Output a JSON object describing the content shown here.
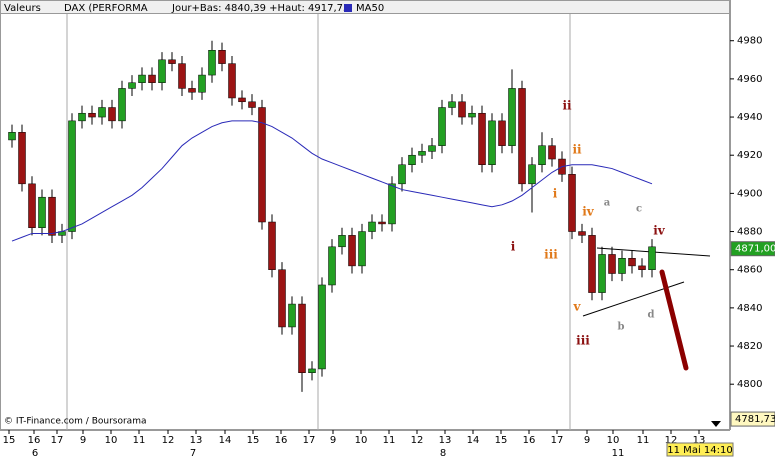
{
  "chart_data": {
    "type": "candlestick",
    "header": {
      "section": "Valeurs",
      "instrument": "DAX (PERFORMA",
      "range": "Jour+Bas: 4840,39 +Haut: 4917,73"
    },
    "source": "© IT-Finance.com / Boursorama",
    "date_label": "11 Mai 14:10",
    "hour_labels": [
      "15",
      "16",
      "17",
      "9",
      "10",
      "11",
      "12",
      "13",
      "14",
      "15",
      "16",
      "17",
      "9",
      "10",
      "11",
      "12",
      "13",
      "14",
      "15",
      "16",
      "17",
      "9",
      "10",
      "11",
      "12",
      "13",
      "14",
      "15",
      "16",
      "17",
      "9",
      "10",
      "11",
      "12",
      "13"
    ],
    "day_labels": [
      "6",
      "7",
      "8",
      "11"
    ],
    "ylim": [
      4776,
      4994
    ],
    "yticks": [
      4800,
      4820,
      4840,
      4860,
      4880,
      4900,
      4920,
      4940,
      4960,
      4980
    ],
    "up_color": "#22a022",
    "down_color": "#9c1414",
    "open": [
      4928,
      4932,
      4905,
      4882,
      4898,
      4878,
      4880,
      4938,
      4942,
      4940,
      4945,
      4938,
      4955,
      4958,
      4962,
      4958,
      4970,
      4968,
      4955,
      4953,
      4962,
      4975,
      4968,
      4950,
      4948,
      4945,
      4885,
      4860,
      4830,
      4842,
      4806,
      4808,
      4852,
      4872,
      4878,
      4862,
      4880,
      4885,
      4884,
      4905,
      4915,
      4920,
      4922,
      4925,
      4945,
      4948,
      4940,
      4942,
      4915,
      4938,
      4925,
      4955,
      4905,
      4915,
      4925,
      4918,
      4910,
      4880,
      4878,
      4848,
      4868,
      4858,
      4866,
      4862,
      4860
    ],
    "high": [
      4936,
      4936,
      4909,
      4902,
      4902,
      4884,
      4942,
      4946,
      4946,
      4949,
      4949,
      4959,
      4962,
      4966,
      4966,
      4974,
      4974,
      4972,
      4959,
      4966,
      4980,
      4979,
      4972,
      4954,
      4952,
      4949,
      4889,
      4864,
      4846,
      4846,
      4812,
      4856,
      4876,
      4882,
      4882,
      4884,
      4889,
      4889,
      4909,
      4919,
      4924,
      4926,
      4929,
      4949,
      4952,
      4952,
      4946,
      4946,
      4942,
      4942,
      4965,
      4959,
      4919,
      4932,
      4929,
      4922,
      4914,
      4884,
      4882,
      4872,
      4872,
      4870,
      4870,
      4866,
      4876
    ],
    "low": [
      4924,
      4901,
      4878,
      4878,
      4874,
      4874,
      4876,
      4934,
      4936,
      4936,
      4934,
      4934,
      4951,
      4954,
      4954,
      4954,
      4964,
      4951,
      4949,
      4949,
      4958,
      4964,
      4946,
      4944,
      4941,
      4881,
      4856,
      4826,
      4826,
      4796,
      4802,
      4804,
      4848,
      4868,
      4858,
      4858,
      4876,
      4880,
      4880,
      4901,
      4911,
      4916,
      4918,
      4921,
      4941,
      4936,
      4936,
      4911,
      4911,
      4921,
      4921,
      4901,
      4890,
      4911,
      4914,
      4906,
      4876,
      4874,
      4844,
      4844,
      4854,
      4854,
      4858,
      4856,
      4856
    ],
    "close": [
      4932,
      4905,
      4882,
      4898,
      4878,
      4880,
      4938,
      4942,
      4940,
      4945,
      4938,
      4955,
      4958,
      4962,
      4958,
      4970,
      4968,
      4955,
      4953,
      4962,
      4975,
      4968,
      4950,
      4948,
      4945,
      4885,
      4860,
      4830,
      4842,
      4806,
      4808,
      4852,
      4872,
      4878,
      4862,
      4880,
      4885,
      4884,
      4905,
      4915,
      4920,
      4922,
      4925,
      4945,
      4948,
      4940,
      4942,
      4915,
      4938,
      4925,
      4955,
      4905,
      4915,
      4925,
      4918,
      4910,
      4880,
      4878,
      4848,
      4868,
      4858,
      4866,
      4862,
      4860,
      4872
    ],
    "series": [
      {
        "name": "MA50",
        "color": "#2a2ab8",
        "values": [
          4875,
          4877,
          4879,
          4879,
          4879,
          4880,
          4882,
          4884,
          4887,
          4890,
          4893,
          4896,
          4899,
          4903,
          4908,
          4913,
          4919,
          4925,
          4929,
          4932,
          4935,
          4937,
          4938,
          4938,
          4938,
          4937,
          4935,
          4932,
          4929,
          4925,
          4921,
          4918,
          4916,
          4914,
          4912,
          4910,
          4908,
          4906,
          4904,
          4902,
          4901,
          4900,
          4899,
          4898,
          4897,
          4896,
          4895,
          4894,
          4893,
          4894,
          4896,
          4899,
          4903,
          4907,
          4911,
          4914,
          4915,
          4915,
          4915,
          4914,
          4913,
          4911,
          4909,
          4907,
          4905
        ]
      }
    ],
    "last_price": {
      "value": 4871.0,
      "label": "4871,00",
      "color": "#22a022"
    },
    "low_price": {
      "value": 4781.73,
      "label": "4781,73",
      "color": "#fff8c0"
    },
    "annotations": [
      {
        "text": "ii",
        "color": "#8b1010"
      },
      {
        "text": "ii",
        "color": "#e07818"
      },
      {
        "text": "i",
        "color": "#e07818"
      },
      {
        "text": "iv",
        "color": "#e07818"
      },
      {
        "text": "i",
        "color": "#8b1010"
      },
      {
        "text": "iii",
        "color": "#e07818"
      },
      {
        "text": "v",
        "color": "#e07818"
      },
      {
        "text": "iii",
        "color": "#8b1010"
      },
      {
        "text": "a",
        "color": "#888888"
      },
      {
        "text": "b",
        "color": "#888888"
      },
      {
        "text": "c",
        "color": "#888888"
      },
      {
        "text": "d",
        "color": "#888888"
      },
      {
        "text": "iv",
        "color": "#8b1010"
      }
    ]
  }
}
